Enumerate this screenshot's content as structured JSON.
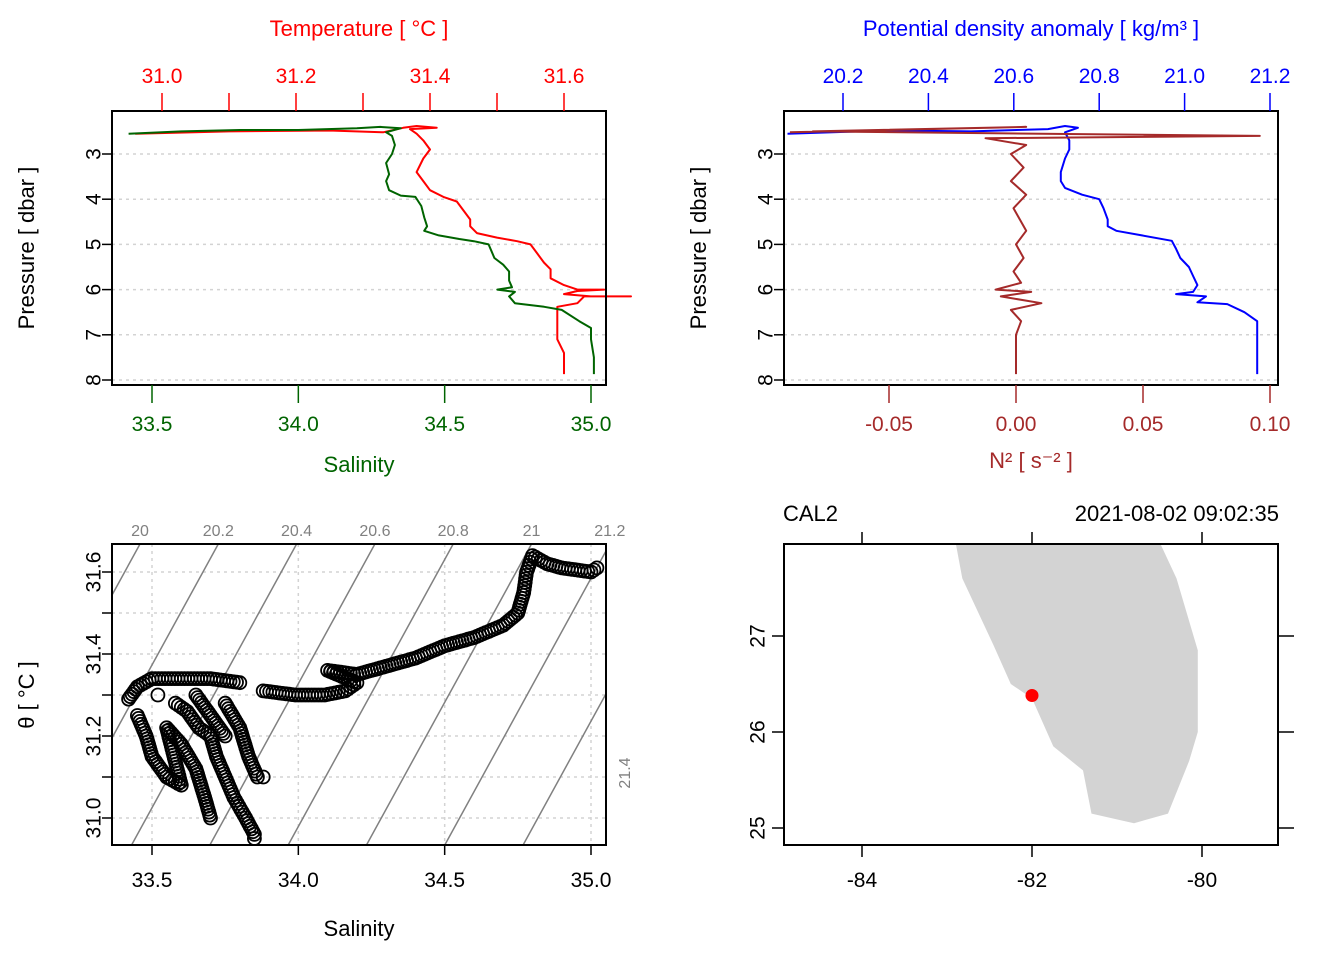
{
  "colors": {
    "temperature": "#ff0000",
    "salinity": "#006400",
    "density": "#0000ff",
    "n2": "#a52a2a",
    "isopycnal": "#808080",
    "grid": "#d3d3d3",
    "land": "#d3d3d3",
    "station": "#ff0000",
    "axis": "#000000"
  },
  "chart_data": [
    {
      "id": "ts-profile",
      "type": "line",
      "title": "",
      "ylabel": "Pressure [ dbar ]",
      "ylim": [
        8.0,
        2.05
      ],
      "yticks": [
        3,
        4,
        5,
        6,
        7,
        8
      ],
      "yticklabels": [
        "3",
        "4",
        "5",
        "6",
        "7",
        "8"
      ],
      "grid": "horizontal-dotted",
      "top_axis": {
        "label": "Temperature [ °C ]",
        "range": [
          30.94,
          31.68
        ],
        "ticks": [
          31.0,
          31.1,
          31.2,
          31.3,
          31.4,
          31.5,
          31.6
        ],
        "ticklabels": [
          "31.0",
          "",
          "31.2",
          "",
          "31.4",
          "",
          "31.6"
        ]
      },
      "bottom_axis": {
        "label": "Salinity",
        "range": [
          33.39,
          35.08
        ],
        "ticks": [
          33.5,
          34.0,
          34.5,
          35.0
        ],
        "ticklabels": [
          "33.5",
          "34.0",
          "34.5",
          "35.0"
        ]
      },
      "series": [
        {
          "name": "Temperature",
          "axis": "top",
          "points": [
            [
              30.96,
              2.55
            ],
            [
              31.1,
              2.5
            ],
            [
              31.25,
              2.48
            ],
            [
              31.33,
              2.52
            ],
            [
              31.36,
              2.42
            ],
            [
              31.38,
              2.38
            ],
            [
              31.41,
              2.42
            ],
            [
              31.37,
              2.45
            ],
            [
              31.38,
              2.55
            ],
            [
              31.39,
              2.7
            ],
            [
              31.4,
              2.9
            ],
            [
              31.39,
              3.1
            ],
            [
              31.38,
              3.4
            ],
            [
              31.39,
              3.6
            ],
            [
              31.4,
              3.8
            ],
            [
              31.42,
              3.95
            ],
            [
              31.44,
              4.05
            ],
            [
              31.45,
              4.25
            ],
            [
              31.46,
              4.45
            ],
            [
              31.46,
              4.6
            ],
            [
              31.47,
              4.75
            ],
            [
              31.5,
              4.85
            ],
            [
              31.53,
              4.93
            ],
            [
              31.55,
              5.0
            ],
            [
              31.56,
              5.2
            ],
            [
              31.57,
              5.4
            ],
            [
              31.58,
              5.55
            ],
            [
              31.58,
              5.75
            ],
            [
              31.6,
              5.9
            ],
            [
              31.62,
              6.0
            ],
            [
              31.66,
              6.0
            ],
            [
              31.62,
              6.03
            ],
            [
              31.6,
              6.1
            ],
            [
              31.64,
              6.15
            ],
            [
              31.7,
              6.15
            ],
            [
              31.63,
              6.15
            ],
            [
              31.62,
              6.3
            ],
            [
              31.59,
              6.38
            ],
            [
              31.59,
              6.6
            ],
            [
              31.59,
              6.8
            ],
            [
              31.59,
              7.1
            ],
            [
              31.6,
              7.4
            ],
            [
              31.6,
              7.6
            ],
            [
              31.6,
              7.87
            ]
          ]
        },
        {
          "name": "Salinity",
          "axis": "bottom",
          "points": [
            [
              33.42,
              2.55
            ],
            [
              33.6,
              2.5
            ],
            [
              33.8,
              2.47
            ],
            [
              34.0,
              2.47
            ],
            [
              34.2,
              2.43
            ],
            [
              34.28,
              2.4
            ],
            [
              34.35,
              2.43
            ],
            [
              34.3,
              2.52
            ],
            [
              34.32,
              2.6
            ],
            [
              34.33,
              2.8
            ],
            [
              34.32,
              3.0
            ],
            [
              34.3,
              3.2
            ],
            [
              34.31,
              3.45
            ],
            [
              34.3,
              3.6
            ],
            [
              34.31,
              3.8
            ],
            [
              34.35,
              3.92
            ],
            [
              34.4,
              3.95
            ],
            [
              34.42,
              4.15
            ],
            [
              34.43,
              4.4
            ],
            [
              34.44,
              4.6
            ],
            [
              34.43,
              4.7
            ],
            [
              34.48,
              4.8
            ],
            [
              34.55,
              4.88
            ],
            [
              34.6,
              4.93
            ],
            [
              34.65,
              5.0
            ],
            [
              34.66,
              5.15
            ],
            [
              34.67,
              5.3
            ],
            [
              34.7,
              5.45
            ],
            [
              34.72,
              5.6
            ],
            [
              34.72,
              5.8
            ],
            [
              34.73,
              5.95
            ],
            [
              34.68,
              6.0
            ],
            [
              34.74,
              6.05
            ],
            [
              34.72,
              6.15
            ],
            [
              34.74,
              6.3
            ],
            [
              34.84,
              6.38
            ],
            [
              34.9,
              6.45
            ],
            [
              34.96,
              6.7
            ],
            [
              35.0,
              6.85
            ],
            [
              35.0,
              7.1
            ],
            [
              35.01,
              7.5
            ],
            [
              35.01,
              7.87
            ]
          ]
        }
      ]
    },
    {
      "id": "density-n2-profile",
      "type": "line",
      "ylabel": "Pressure [ dbar ]",
      "ylim": [
        8.0,
        2.05
      ],
      "yticks": [
        3,
        4,
        5,
        6,
        7,
        8
      ],
      "yticklabels": [
        "3",
        "4",
        "5",
        "6",
        "7",
        "8"
      ],
      "grid": "horizontal-dotted",
      "top_axis": {
        "label": "Potential density anomaly [ kg/m³ ]",
        "range": [
          20.06,
          21.22
        ],
        "ticks": [
          20.2,
          20.4,
          20.6,
          20.8,
          21.0,
          21.2
        ],
        "ticklabels": [
          "20.2",
          "20.4",
          "20.6",
          "20.8",
          "21.0",
          "21.2"
        ]
      },
      "bottom_axis": {
        "label": "N² [ s⁻² ]",
        "range": [
          -0.092,
          0.102
        ],
        "ticks": [
          -0.05,
          0.0,
          0.05,
          0.1
        ],
        "ticklabels": [
          "-0.05",
          "0.00",
          "0.05",
          "0.10"
        ]
      },
      "series": [
        {
          "name": "Potential density anomaly",
          "axis": "top",
          "points": [
            [
              20.07,
              2.55
            ],
            [
              20.3,
              2.48
            ],
            [
              20.5,
              2.5
            ],
            [
              20.68,
              2.45
            ],
            [
              20.72,
              2.38
            ],
            [
              20.75,
              2.42
            ],
            [
              20.72,
              2.52
            ],
            [
              20.73,
              2.7
            ],
            [
              20.73,
              2.9
            ],
            [
              20.72,
              3.1
            ],
            [
              20.71,
              3.4
            ],
            [
              20.71,
              3.6
            ],
            [
              20.72,
              3.75
            ],
            [
              20.76,
              3.9
            ],
            [
              20.8,
              4.0
            ],
            [
              20.81,
              4.2
            ],
            [
              20.82,
              4.45
            ],
            [
              20.82,
              4.6
            ],
            [
              20.84,
              4.7
            ],
            [
              20.9,
              4.8
            ],
            [
              20.97,
              4.92
            ],
            [
              20.98,
              5.1
            ],
            [
              20.99,
              5.3
            ],
            [
              21.01,
              5.5
            ],
            [
              21.02,
              5.7
            ],
            [
              21.03,
              5.9
            ],
            [
              21.02,
              6.05
            ],
            [
              20.98,
              6.1
            ],
            [
              21.05,
              6.15
            ],
            [
              21.03,
              6.28
            ],
            [
              21.1,
              6.32
            ],
            [
              21.14,
              6.5
            ],
            [
              21.17,
              6.7
            ],
            [
              21.17,
              6.9
            ],
            [
              21.17,
              7.3
            ],
            [
              21.17,
              7.87
            ]
          ]
        },
        {
          "name": "N2",
          "axis": "bottom",
          "points": [
            [
              -0.089,
              2.52
            ],
            [
              0.004,
              2.4
            ],
            [
              -0.08,
              2.5
            ],
            [
              0.096,
              2.6
            ],
            [
              -0.012,
              2.65
            ],
            [
              0.004,
              2.8
            ],
            [
              -0.002,
              3.0
            ],
            [
              0.003,
              3.3
            ],
            [
              -0.002,
              3.6
            ],
            [
              0.004,
              3.9
            ],
            [
              -0.001,
              4.2
            ],
            [
              0.004,
              4.7
            ],
            [
              0.0,
              5.0
            ],
            [
              0.003,
              5.3
            ],
            [
              -0.001,
              5.6
            ],
            [
              0.002,
              5.85
            ],
            [
              -0.008,
              6.0
            ],
            [
              0.006,
              6.05
            ],
            [
              -0.006,
              6.15
            ],
            [
              0.01,
              6.3
            ],
            [
              -0.002,
              6.45
            ],
            [
              0.002,
              6.7
            ],
            [
              0.0,
              7.0
            ],
            [
              0.0,
              7.87
            ]
          ]
        }
      ]
    },
    {
      "id": "ts-diagram",
      "type": "scatter",
      "xlabel": "Salinity",
      "ylabel": "θ [ °C ]",
      "xlim": [
        33.39,
        35.08
      ],
      "ylim": [
        30.93,
        31.67
      ],
      "xticks": [
        33.5,
        34.0,
        34.5,
        35.0
      ],
      "xticklabels": [
        "33.5",
        "34.0",
        "34.5",
        "35.0"
      ],
      "yticks": [
        31.0,
        31.1,
        31.2,
        31.3,
        31.4,
        31.5,
        31.6
      ],
      "yticklabels": [
        "31.0",
        "",
        "31.2",
        "",
        "31.4",
        "",
        "31.6"
      ],
      "grid": "dotted",
      "isopycnals": {
        "levels": [
          20.0,
          20.2,
          20.4,
          20.6,
          20.8,
          21.0,
          21.2,
          21.4
        ],
        "labels": [
          "20",
          "20.2",
          "20.4",
          "20.6",
          "20.8",
          "21",
          "21.2",
          "21.4"
        ]
      },
      "points": [
        [
          33.42,
          31.29
        ],
        [
          33.45,
          31.32
        ],
        [
          33.5,
          31.34
        ],
        [
          33.6,
          31.34
        ],
        [
          33.7,
          31.34
        ],
        [
          33.8,
          31.33
        ],
        [
          33.45,
          31.25
        ],
        [
          33.48,
          31.2
        ],
        [
          33.5,
          31.15
        ],
        [
          33.55,
          31.1
        ],
        [
          33.6,
          31.08
        ],
        [
          33.55,
          31.22
        ],
        [
          33.6,
          31.18
        ],
        [
          33.65,
          31.12
        ],
        [
          33.68,
          31.05
        ],
        [
          33.7,
          31.0
        ],
        [
          33.58,
          31.28
        ],
        [
          33.62,
          31.26
        ],
        [
          33.66,
          31.22
        ],
        [
          33.7,
          31.2
        ],
        [
          33.72,
          31.15
        ],
        [
          33.75,
          31.1
        ],
        [
          33.78,
          31.05
        ],
        [
          33.82,
          31.0
        ],
        [
          33.85,
          30.96
        ],
        [
          33.85,
          30.95
        ],
        [
          33.75,
          31.28
        ],
        [
          33.8,
          31.22
        ],
        [
          33.83,
          31.15
        ],
        [
          33.86,
          31.1
        ],
        [
          33.88,
          31.1
        ],
        [
          33.65,
          31.3
        ],
        [
          33.7,
          31.25
        ],
        [
          33.75,
          31.2
        ],
        [
          33.52,
          31.3
        ],
        [
          33.88,
          31.31
        ],
        [
          33.99,
          31.3
        ],
        [
          34.09,
          31.3
        ],
        [
          34.16,
          31.31
        ],
        [
          34.2,
          31.33
        ],
        [
          34.1,
          31.36
        ],
        [
          34.2,
          31.35
        ],
        [
          34.3,
          31.37
        ],
        [
          34.4,
          31.39
        ],
        [
          34.5,
          31.42
        ],
        [
          34.6,
          31.44
        ],
        [
          34.7,
          31.47
        ],
        [
          34.75,
          31.5
        ],
        [
          34.77,
          31.55
        ],
        [
          34.78,
          31.6
        ],
        [
          34.8,
          31.64
        ],
        [
          34.85,
          31.62
        ],
        [
          34.9,
          31.61
        ],
        [
          35.0,
          31.6
        ],
        [
          35.02,
          31.61
        ]
      ]
    },
    {
      "id": "station-map",
      "type": "map",
      "title_left": "CAL2",
      "title_right": "2021-08-02 09:02:35",
      "xlim": [
        -84.9,
        -79.1
      ],
      "ylim": [
        24.82,
        27.98
      ],
      "xticks": [
        -84,
        -82,
        -80
      ],
      "xticklabels": [
        "-84",
        "-82",
        "-80"
      ],
      "yticks": [
        25,
        26,
        27
      ],
      "yticklabels": [
        "25",
        "26",
        "27"
      ],
      "coastline": [
        [
          -82.9,
          27.98
        ],
        [
          -82.82,
          27.6
        ],
        [
          -82.45,
          26.9
        ],
        [
          -82.25,
          26.5
        ],
        [
          -82.0,
          26.35
        ],
        [
          -81.75,
          25.85
        ],
        [
          -81.4,
          25.6
        ],
        [
          -81.3,
          25.15
        ],
        [
          -80.8,
          25.05
        ],
        [
          -80.4,
          25.15
        ],
        [
          -80.15,
          25.7
        ],
        [
          -80.05,
          26.0
        ],
        [
          -80.05,
          26.85
        ],
        [
          -80.3,
          27.6
        ],
        [
          -80.5,
          27.98
        ]
      ],
      "station": {
        "name": "CAL2",
        "lon": -82.0,
        "lat": 26.38
      }
    }
  ]
}
